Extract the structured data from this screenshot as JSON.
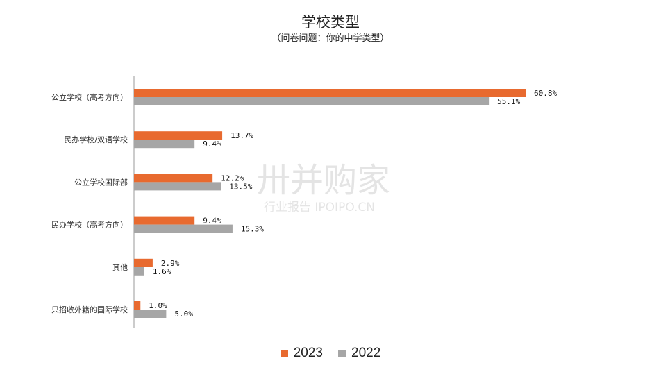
{
  "chart_data": {
    "type": "bar",
    "orientation": "horizontal",
    "title": "学校类型",
    "subtitle": "（问卷问题：你的中学类型）",
    "categories": [
      "公立学校（高考方向）",
      "民办学校/双语学校",
      "公立学校国际部",
      "民办学校（高考方向）",
      "其他",
      "只招收外籍的国际学校"
    ],
    "series": [
      {
        "name": "2023",
        "color": "#E86A2F",
        "values": [
          60.8,
          13.7,
          12.2,
          9.4,
          2.9,
          1.0
        ],
        "labels": [
          "60.8%",
          "13.7%",
          "12.2%",
          "9.4%",
          "2.9%",
          "1.0%"
        ]
      },
      {
        "name": "2022",
        "color": "#A6A6A6",
        "values": [
          55.1,
          9.4,
          13.5,
          15.3,
          1.6,
          5.0
        ],
        "labels": [
          "55.1%",
          "9.4%",
          "13.5%",
          "15.3%",
          "1.6%",
          "5.0%"
        ]
      }
    ],
    "xlim": [
      0,
      70
    ],
    "grid": false,
    "legend": "bottom-center"
  },
  "watermark": {
    "main": "卅并购家",
    "sub": "行业报告 IPOIPO.CN"
  }
}
